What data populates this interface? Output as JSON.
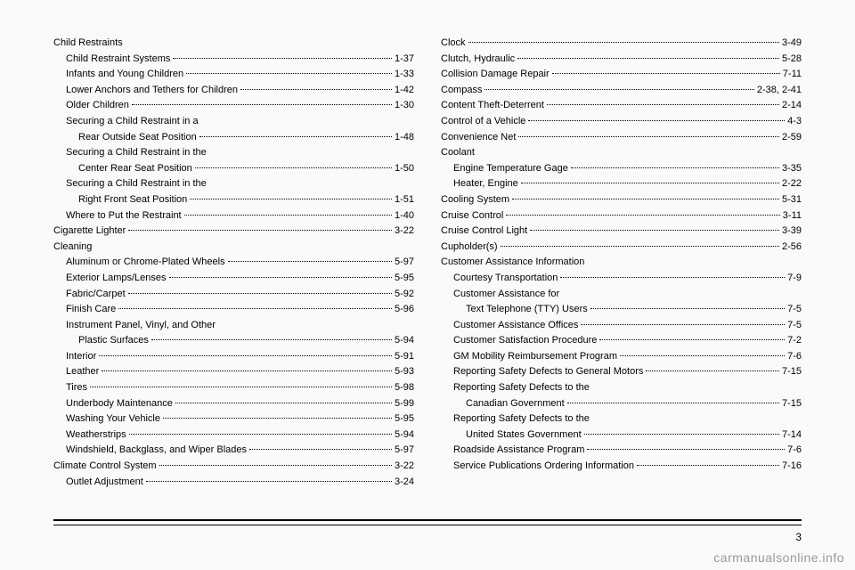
{
  "left": [
    {
      "label": "Child Restraints",
      "page": "",
      "indent": 0,
      "heading": true
    },
    {
      "label": "Child Restraint Systems",
      "page": "1-37",
      "indent": 1
    },
    {
      "label": "Infants and Young Children",
      "page": "1-33",
      "indent": 1
    },
    {
      "label": "Lower Anchors and Tethers for Children",
      "page": "1-42",
      "indent": 1
    },
    {
      "label": "Older Children",
      "page": "1-30",
      "indent": 1
    },
    {
      "label": "Securing a Child Restraint in a",
      "page": "",
      "indent": 1,
      "heading": true
    },
    {
      "label": "Rear Outside Seat Position",
      "page": "1-48",
      "indent": 2
    },
    {
      "label": "Securing a Child Restraint in the",
      "page": "",
      "indent": 1,
      "heading": true
    },
    {
      "label": "Center Rear Seat Position",
      "page": "1-50",
      "indent": 2
    },
    {
      "label": "Securing a Child Restraint in the",
      "page": "",
      "indent": 1,
      "heading": true
    },
    {
      "label": "Right Front Seat Position",
      "page": "1-51",
      "indent": 2
    },
    {
      "label": "Where to Put the Restraint",
      "page": "1-40",
      "indent": 1
    },
    {
      "label": "Cigarette Lighter",
      "page": "3-22",
      "indent": 0
    },
    {
      "label": "Cleaning",
      "page": "",
      "indent": 0,
      "heading": true
    },
    {
      "label": "Aluminum or Chrome-Plated Wheels",
      "page": "5-97",
      "indent": 1
    },
    {
      "label": "Exterior Lamps/Lenses",
      "page": "5-95",
      "indent": 1
    },
    {
      "label": "Fabric/Carpet",
      "page": "5-92",
      "indent": 1
    },
    {
      "label": "Finish Care",
      "page": "5-96",
      "indent": 1
    },
    {
      "label": "Instrument Panel, Vinyl, and Other",
      "page": "",
      "indent": 1,
      "heading": true
    },
    {
      "label": "Plastic Surfaces",
      "page": "5-94",
      "indent": 2
    },
    {
      "label": "Interior",
      "page": "5-91",
      "indent": 1
    },
    {
      "label": "Leather",
      "page": "5-93",
      "indent": 1
    },
    {
      "label": "Tires",
      "page": "5-98",
      "indent": 1
    },
    {
      "label": "Underbody Maintenance",
      "page": "5-99",
      "indent": 1
    },
    {
      "label": "Washing Your Vehicle",
      "page": "5-95",
      "indent": 1
    },
    {
      "label": "Weatherstrips",
      "page": "5-94",
      "indent": 1
    },
    {
      "label": "Windshield, Backglass, and Wiper Blades",
      "page": "5-97",
      "indent": 1
    },
    {
      "label": "Climate Control System",
      "page": "3-22",
      "indent": 0
    },
    {
      "label": "Outlet Adjustment",
      "page": "3-24",
      "indent": 1
    }
  ],
  "right": [
    {
      "label": "Clock",
      "page": "3-49",
      "indent": 0
    },
    {
      "label": "Clutch, Hydraulic",
      "page": "5-28",
      "indent": 0
    },
    {
      "label": "Collision Damage Repair",
      "page": "7-11",
      "indent": 0
    },
    {
      "label": "Compass",
      "page": "2-38, 2-41",
      "indent": 0
    },
    {
      "label": "Content Theft-Deterrent",
      "page": "2-14",
      "indent": 0
    },
    {
      "label": "Control of a Vehicle",
      "page": "4-3",
      "indent": 0
    },
    {
      "label": "Convenience Net",
      "page": "2-59",
      "indent": 0
    },
    {
      "label": "Coolant",
      "page": "",
      "indent": 0,
      "heading": true
    },
    {
      "label": "Engine Temperature Gage",
      "page": "3-35",
      "indent": 1
    },
    {
      "label": "Heater, Engine",
      "page": "2-22",
      "indent": 1
    },
    {
      "label": "Cooling System",
      "page": "5-31",
      "indent": 0
    },
    {
      "label": "Cruise Control",
      "page": "3-11",
      "indent": 0
    },
    {
      "label": "Cruise Control Light",
      "page": "3-39",
      "indent": 0
    },
    {
      "label": "Cupholder(s)",
      "page": "2-56",
      "indent": 0
    },
    {
      "label": "Customer Assistance Information",
      "page": "",
      "indent": 0,
      "heading": true
    },
    {
      "label": "Courtesy Transportation",
      "page": "7-9",
      "indent": 1
    },
    {
      "label": "Customer Assistance for",
      "page": "",
      "indent": 1,
      "heading": true
    },
    {
      "label": "Text Telephone (TTY) Users",
      "page": "7-5",
      "indent": 2
    },
    {
      "label": "Customer Assistance Offices",
      "page": "7-5",
      "indent": 1
    },
    {
      "label": "Customer Satisfaction Procedure",
      "page": "7-2",
      "indent": 1
    },
    {
      "label": "GM Mobility Reimbursement Program",
      "page": "7-6",
      "indent": 1
    },
    {
      "label": "Reporting Safety Defects to General Motors",
      "page": "7-15",
      "indent": 1
    },
    {
      "label": "Reporting Safety Defects to the",
      "page": "",
      "indent": 1,
      "heading": true
    },
    {
      "label": "Canadian Government",
      "page": "7-15",
      "indent": 2
    },
    {
      "label": "Reporting Safety Defects to the",
      "page": "",
      "indent": 1,
      "heading": true
    },
    {
      "label": "United States Government",
      "page": "7-14",
      "indent": 2
    },
    {
      "label": "Roadside Assistance Program",
      "page": "7-6",
      "indent": 1
    },
    {
      "label": "Service Publications Ordering Information",
      "page": "7-16",
      "indent": 1
    }
  ],
  "pageNumber": "3",
  "watermark": "carmanualsonline.info"
}
